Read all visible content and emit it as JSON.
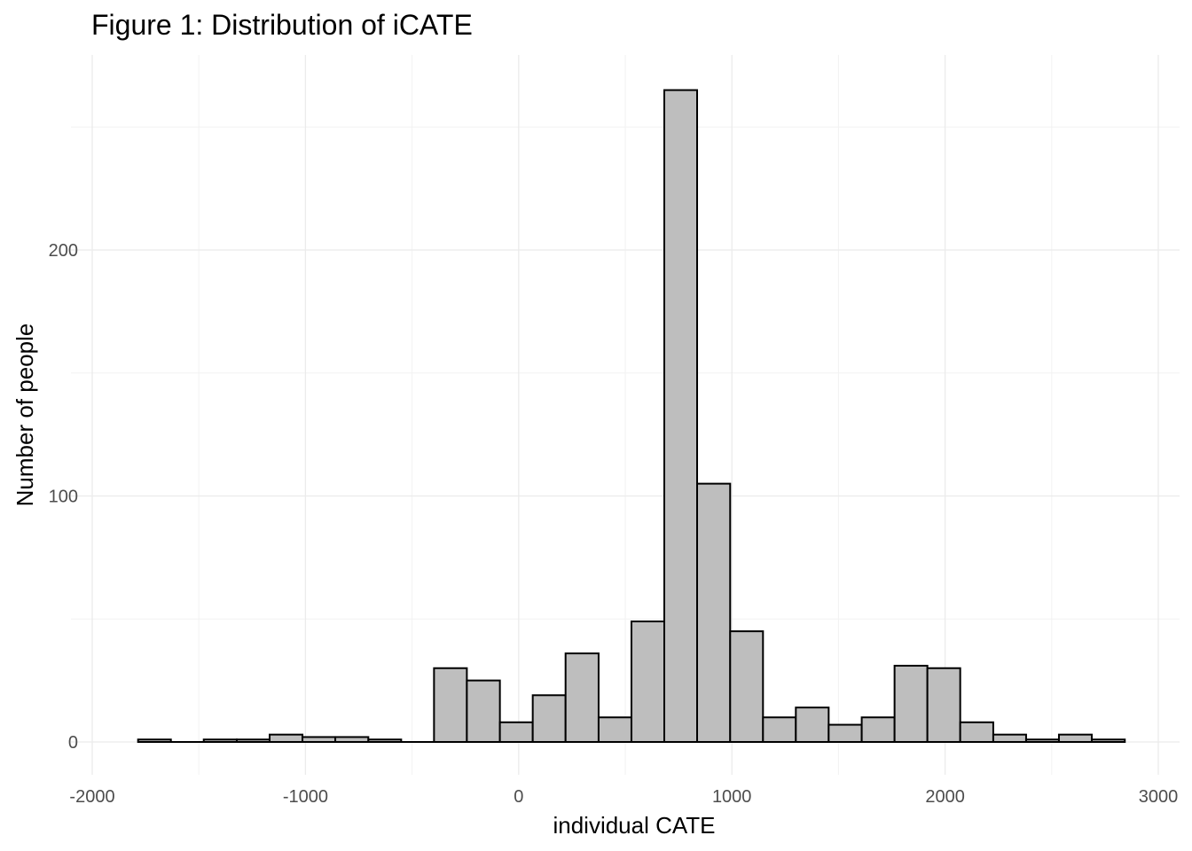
{
  "chart_data": {
    "type": "bar",
    "title": "Figure 1: Distribution of iCATE",
    "xlabel": "individual CATE",
    "ylabel": "Number of people",
    "xlim": [
      -2000,
      3000
    ],
    "ylim": [
      0,
      265
    ],
    "x_ticks": [
      -2000,
      -1000,
      0,
      1000,
      2000,
      3000
    ],
    "x_tick_labels": [
      "-2000",
      "-1000",
      "0",
      "1000",
      "2000",
      "3000"
    ],
    "x_minor_ticks": [
      -1500,
      -500,
      500,
      1500,
      2500
    ],
    "y_ticks": [
      0,
      100,
      200
    ],
    "y_tick_labels": [
      "0",
      "100",
      "200"
    ],
    "y_minor_ticks": [
      50,
      150,
      250
    ],
    "grid": true,
    "bar_fill": "#bebebe",
    "bar_outline": "#000000",
    "bins": [
      {
        "x0": -1785,
        "x1": -1631,
        "count": 1
      },
      {
        "x0": -1631,
        "x1": -1477,
        "count": 0
      },
      {
        "x0": -1477,
        "x1": -1322,
        "count": 1
      },
      {
        "x0": -1322,
        "x1": -1168,
        "count": 1
      },
      {
        "x0": -1168,
        "x1": -1014,
        "count": 3
      },
      {
        "x0": -1014,
        "x1": -860,
        "count": 2
      },
      {
        "x0": -860,
        "x1": -705,
        "count": 2
      },
      {
        "x0": -705,
        "x1": -551,
        "count": 1
      },
      {
        "x0": -551,
        "x1": -397,
        "count": 0
      },
      {
        "x0": -397,
        "x1": -243,
        "count": 30
      },
      {
        "x0": -243,
        "x1": -88,
        "count": 25
      },
      {
        "x0": -88,
        "x1": 66,
        "count": 8
      },
      {
        "x0": 66,
        "x1": 220,
        "count": 19
      },
      {
        "x0": 220,
        "x1": 375,
        "count": 36
      },
      {
        "x0": 375,
        "x1": 529,
        "count": 10
      },
      {
        "x0": 529,
        "x1": 683,
        "count": 49
      },
      {
        "x0": 683,
        "x1": 837,
        "count": 265
      },
      {
        "x0": 837,
        "x1": 992,
        "count": 105
      },
      {
        "x0": 992,
        "x1": 1146,
        "count": 45
      },
      {
        "x0": 1146,
        "x1": 1300,
        "count": 10
      },
      {
        "x0": 1300,
        "x1": 1454,
        "count": 14
      },
      {
        "x0": 1454,
        "x1": 1609,
        "count": 7
      },
      {
        "x0": 1609,
        "x1": 1763,
        "count": 10
      },
      {
        "x0": 1763,
        "x1": 1917,
        "count": 31
      },
      {
        "x0": 1917,
        "x1": 2071,
        "count": 30
      },
      {
        "x0": 2071,
        "x1": 2226,
        "count": 8
      },
      {
        "x0": 2226,
        "x1": 2380,
        "count": 3
      },
      {
        "x0": 2380,
        "x1": 2534,
        "count": 1
      },
      {
        "x0": 2534,
        "x1": 2688,
        "count": 3
      },
      {
        "x0": 2688,
        "x1": 2843,
        "count": 1
      }
    ]
  }
}
